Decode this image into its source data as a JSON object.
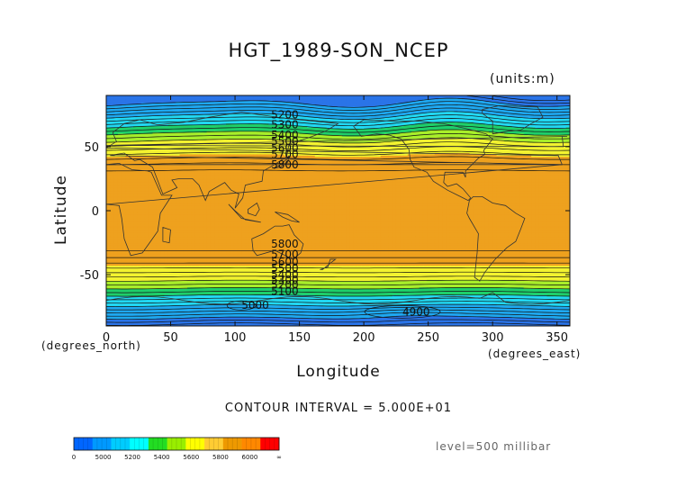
{
  "chart_data": {
    "type": "contour",
    "title": "HGT_1989-SON_NCEP",
    "units_label": "(units:m)",
    "xlabel": "Longitude",
    "ylabel": "Latitude",
    "x_unit_label": "(degrees_east)",
    "y_unit_label": "(degrees_north)",
    "xlim": [
      0,
      360
    ],
    "ylim": [
      -90,
      90
    ],
    "x_ticks": [
      0,
      50,
      100,
      150,
      200,
      250,
      300,
      350
    ],
    "y_ticks": [
      50,
      0,
      -50
    ],
    "contour_interval_label": "CONTOUR INTERVAL = 5.000E+01",
    "level_label": "level=500 millibar",
    "contour_labels": [
      {
        "text": "5200",
        "lon": 128,
        "lat": 75
      },
      {
        "text": "5300",
        "lon": 128,
        "lat": 67
      },
      {
        "text": "5400",
        "lon": 128,
        "lat": 59
      },
      {
        "text": "5500",
        "lon": 128,
        "lat": 54
      },
      {
        "text": "5600",
        "lon": 128,
        "lat": 49
      },
      {
        "text": "5700",
        "lon": 128,
        "lat": 44
      },
      {
        "text": "5800",
        "lon": 128,
        "lat": 36
      },
      {
        "text": "5800",
        "lon": 128,
        "lat": -26
      },
      {
        "text": "5700",
        "lon": 128,
        "lat": -34
      },
      {
        "text": "5600",
        "lon": 128,
        "lat": -40
      },
      {
        "text": "5500",
        "lon": 128,
        "lat": -45
      },
      {
        "text": "5400",
        "lon": 128,
        "lat": -50
      },
      {
        "text": "5300",
        "lon": 128,
        "lat": -54
      },
      {
        "text": "5200",
        "lon": 128,
        "lat": -58
      },
      {
        "text": "5100",
        "lon": 128,
        "lat": -63
      },
      {
        "text": "5000",
        "lon": 105,
        "lat": -74
      },
      {
        "text": "4900",
        "lon": 230,
        "lat": -79
      }
    ],
    "colorbar": {
      "tick_labels": [
        "0",
        "5000",
        "5200",
        "5400",
        "5600",
        "5800",
        "6000",
        "∞"
      ],
      "colors": [
        "#0066ff",
        "#0099ff",
        "#00ccff",
        "#00ffff",
        "#22dd22",
        "#99ee00",
        "#ffff00",
        "#ffcc33",
        "#ee9900",
        "#ff8800",
        "#ff0000"
      ]
    },
    "bands": [
      {
        "threshold": 0,
        "color": "#2a74e8"
      },
      {
        "threshold": 5000,
        "color": "#1fa8f0"
      },
      {
        "threshold": 5200,
        "color": "#22d8f2"
      },
      {
        "threshold": 5350,
        "color": "#1fcf6a"
      },
      {
        "threshold": 5450,
        "color": "#a8ee2a"
      },
      {
        "threshold": 5550,
        "color": "#f3f330"
      },
      {
        "threshold": 5720,
        "color": "#eea11e"
      }
    ]
  }
}
